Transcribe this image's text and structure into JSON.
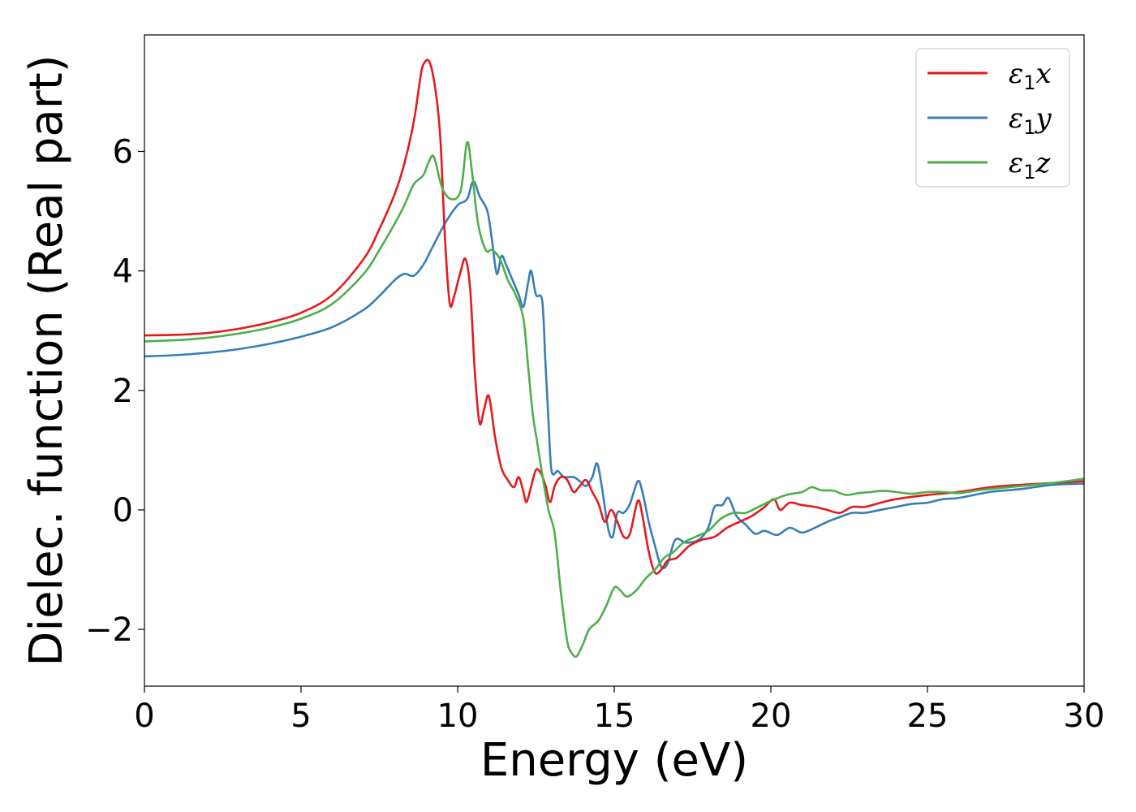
{
  "chart_data": {
    "type": "line",
    "title": "",
    "xlabel": "Energy (eV)",
    "ylabel": "Dielec. function (Real part)",
    "xlim": [
      0,
      30
    ],
    "ylim": [
      -2.95,
      7.95
    ],
    "xticks": [
      0,
      5,
      10,
      15,
      20,
      25,
      30
    ],
    "xtick_labels": [
      "0",
      "5",
      "10",
      "15",
      "20",
      "25",
      "30"
    ],
    "yticks": [
      -2,
      0,
      2,
      4,
      6
    ],
    "ytick_labels": [
      "−2",
      "0",
      "2",
      "4",
      "6"
    ],
    "grid": false,
    "legend_position": "top-right",
    "series": [
      {
        "name": "ε₁x",
        "legend_main": "ε",
        "legend_sub": "1",
        "legend_var": "x",
        "color": "#e41a1c",
        "points": [
          [
            0,
            2.92
          ],
          [
            1,
            2.93
          ],
          [
            2,
            2.96
          ],
          [
            3,
            3.03
          ],
          [
            4,
            3.14
          ],
          [
            5,
            3.3
          ],
          [
            6,
            3.6
          ],
          [
            7,
            4.2
          ],
          [
            7.5,
            4.7
          ],
          [
            8,
            5.3
          ],
          [
            8.3,
            5.8
          ],
          [
            8.6,
            6.5
          ],
          [
            8.8,
            7.2
          ],
          [
            8.9,
            7.45
          ],
          [
            9.1,
            7.5
          ],
          [
            9.3,
            7.0
          ],
          [
            9.45,
            6.2
          ],
          [
            9.6,
            4.5
          ],
          [
            9.75,
            3.45
          ],
          [
            9.9,
            3.6
          ],
          [
            10.1,
            4.0
          ],
          [
            10.25,
            4.2
          ],
          [
            10.4,
            3.7
          ],
          [
            10.55,
            2.3
          ],
          [
            10.7,
            1.45
          ],
          [
            10.85,
            1.7
          ],
          [
            11.0,
            1.9
          ],
          [
            11.2,
            1.2
          ],
          [
            11.4,
            0.7
          ],
          [
            11.6,
            0.5
          ],
          [
            11.8,
            0.38
          ],
          [
            11.95,
            0.55
          ],
          [
            12.1,
            0.3
          ],
          [
            12.2,
            0.13
          ],
          [
            12.35,
            0.4
          ],
          [
            12.5,
            0.67
          ],
          [
            12.65,
            0.62
          ],
          [
            12.8,
            0.42
          ],
          [
            12.95,
            0.13
          ],
          [
            13.1,
            0.4
          ],
          [
            13.3,
            0.55
          ],
          [
            13.5,
            0.5
          ],
          [
            13.7,
            0.3
          ],
          [
            13.9,
            0.4
          ],
          [
            14.1,
            0.5
          ],
          [
            14.3,
            0.3
          ],
          [
            14.5,
            0.1
          ],
          [
            14.7,
            -0.2
          ],
          [
            14.9,
            0.0
          ],
          [
            15.1,
            -0.2
          ],
          [
            15.3,
            -0.45
          ],
          [
            15.5,
            -0.4
          ],
          [
            15.75,
            0.15
          ],
          [
            15.9,
            -0.1
          ],
          [
            16.1,
            -0.7
          ],
          [
            16.3,
            -1.05
          ],
          [
            16.5,
            -1.0
          ],
          [
            16.7,
            -0.85
          ],
          [
            17.0,
            -0.8
          ],
          [
            17.4,
            -0.6
          ],
          [
            17.8,
            -0.5
          ],
          [
            18.2,
            -0.45
          ],
          [
            18.6,
            -0.3
          ],
          [
            19.0,
            -0.2
          ],
          [
            19.4,
            -0.1
          ],
          [
            19.8,
            0.05
          ],
          [
            20.1,
            0.18
          ],
          [
            20.3,
            0.0
          ],
          [
            20.6,
            0.12
          ],
          [
            21.0,
            0.08
          ],
          [
            21.4,
            0.05
          ],
          [
            21.8,
            0.0
          ],
          [
            22.2,
            -0.05
          ],
          [
            22.6,
            0.05
          ],
          [
            23.0,
            0.05
          ],
          [
            23.5,
            0.12
          ],
          [
            24.0,
            0.18
          ],
          [
            25.0,
            0.25
          ],
          [
            26.0,
            0.3
          ],
          [
            27.0,
            0.38
          ],
          [
            28.0,
            0.42
          ],
          [
            29.0,
            0.45
          ],
          [
            30.0,
            0.48
          ]
        ]
      },
      {
        "name": "ε₁y",
        "legend_main": "ε",
        "legend_sub": "1",
        "legend_var": "y",
        "color": "#377eb8",
        "points": [
          [
            0,
            2.57
          ],
          [
            1,
            2.59
          ],
          [
            2,
            2.63
          ],
          [
            3,
            2.69
          ],
          [
            4,
            2.78
          ],
          [
            5,
            2.9
          ],
          [
            6,
            3.06
          ],
          [
            7,
            3.35
          ],
          [
            7.5,
            3.58
          ],
          [
            8,
            3.85
          ],
          [
            8.3,
            3.95
          ],
          [
            8.6,
            3.92
          ],
          [
            8.9,
            4.1
          ],
          [
            9.2,
            4.4
          ],
          [
            9.6,
            4.8
          ],
          [
            10.0,
            5.1
          ],
          [
            10.3,
            5.2
          ],
          [
            10.5,
            5.5
          ],
          [
            10.7,
            5.25
          ],
          [
            10.95,
            5.0
          ],
          [
            11.1,
            4.5
          ],
          [
            11.25,
            3.95
          ],
          [
            11.4,
            4.25
          ],
          [
            11.55,
            4.1
          ],
          [
            11.75,
            3.85
          ],
          [
            11.95,
            3.6
          ],
          [
            12.1,
            3.4
          ],
          [
            12.25,
            3.8
          ],
          [
            12.35,
            4.0
          ],
          [
            12.5,
            3.6
          ],
          [
            12.7,
            3.5
          ],
          [
            12.8,
            2.5
          ],
          [
            12.9,
            1.5
          ],
          [
            13.0,
            0.65
          ],
          [
            13.2,
            0.65
          ],
          [
            13.4,
            0.55
          ],
          [
            13.7,
            0.55
          ],
          [
            13.9,
            0.48
          ],
          [
            14.1,
            0.4
          ],
          [
            14.3,
            0.55
          ],
          [
            14.45,
            0.78
          ],
          [
            14.6,
            0.4
          ],
          [
            14.8,
            -0.3
          ],
          [
            14.95,
            -0.45
          ],
          [
            15.1,
            -0.05
          ],
          [
            15.3,
            -0.05
          ],
          [
            15.5,
            0.1
          ],
          [
            15.75,
            0.48
          ],
          [
            15.9,
            0.3
          ],
          [
            16.1,
            -0.2
          ],
          [
            16.3,
            -0.6
          ],
          [
            16.5,
            -0.95
          ],
          [
            16.7,
            -0.9
          ],
          [
            16.95,
            -0.5
          ],
          [
            17.3,
            -0.55
          ],
          [
            17.7,
            -0.5
          ],
          [
            18.0,
            -0.3
          ],
          [
            18.2,
            0.05
          ],
          [
            18.45,
            0.08
          ],
          [
            18.65,
            0.2
          ],
          [
            18.9,
            -0.1
          ],
          [
            19.2,
            -0.25
          ],
          [
            19.5,
            -0.4
          ],
          [
            19.8,
            -0.35
          ],
          [
            20.2,
            -0.42
          ],
          [
            20.6,
            -0.3
          ],
          [
            21.0,
            -0.38
          ],
          [
            21.4,
            -0.3
          ],
          [
            21.8,
            -0.2
          ],
          [
            22.2,
            -0.12
          ],
          [
            22.6,
            -0.05
          ],
          [
            23.0,
            -0.05
          ],
          [
            23.5,
            0.0
          ],
          [
            24.0,
            0.05
          ],
          [
            24.5,
            0.1
          ],
          [
            25.0,
            0.12
          ],
          [
            25.5,
            0.18
          ],
          [
            26.0,
            0.2
          ],
          [
            27.0,
            0.3
          ],
          [
            28.0,
            0.35
          ],
          [
            29.0,
            0.42
          ],
          [
            30.0,
            0.44
          ]
        ]
      },
      {
        "name": "ε₁z",
        "legend_main": "ε",
        "legend_sub": "1",
        "legend_var": "z",
        "color": "#4daf4a",
        "points": [
          [
            0,
            2.82
          ],
          [
            1,
            2.84
          ],
          [
            2,
            2.88
          ],
          [
            3,
            2.95
          ],
          [
            4,
            3.05
          ],
          [
            5,
            3.2
          ],
          [
            6,
            3.45
          ],
          [
            7,
            3.95
          ],
          [
            7.5,
            4.35
          ],
          [
            8,
            4.8
          ],
          [
            8.3,
            5.1
          ],
          [
            8.6,
            5.45
          ],
          [
            8.9,
            5.6
          ],
          [
            9.1,
            5.85
          ],
          [
            9.25,
            5.9
          ],
          [
            9.5,
            5.4
          ],
          [
            9.8,
            5.2
          ],
          [
            10.1,
            5.35
          ],
          [
            10.3,
            6.15
          ],
          [
            10.45,
            5.7
          ],
          [
            10.65,
            4.8
          ],
          [
            10.9,
            4.35
          ],
          [
            11.1,
            4.35
          ],
          [
            11.35,
            4.2
          ],
          [
            11.6,
            3.85
          ],
          [
            11.85,
            3.6
          ],
          [
            12.1,
            3.2
          ],
          [
            12.25,
            2.4
          ],
          [
            12.4,
            1.6
          ],
          [
            12.55,
            1.1
          ],
          [
            12.7,
            0.6
          ],
          [
            12.9,
            0.0
          ],
          [
            13.1,
            -0.4
          ],
          [
            13.3,
            -1.4
          ],
          [
            13.5,
            -2.2
          ],
          [
            13.65,
            -2.4
          ],
          [
            13.8,
            -2.45
          ],
          [
            14.0,
            -2.25
          ],
          [
            14.2,
            -2.0
          ],
          [
            14.5,
            -1.85
          ],
          [
            14.75,
            -1.6
          ],
          [
            15.0,
            -1.3
          ],
          [
            15.2,
            -1.35
          ],
          [
            15.4,
            -1.45
          ],
          [
            15.7,
            -1.35
          ],
          [
            16.0,
            -1.15
          ],
          [
            16.3,
            -1.0
          ],
          [
            16.6,
            -0.8
          ],
          [
            16.9,
            -0.7
          ],
          [
            17.2,
            -0.55
          ],
          [
            17.6,
            -0.45
          ],
          [
            18.0,
            -0.35
          ],
          [
            18.4,
            -0.15
          ],
          [
            18.8,
            -0.05
          ],
          [
            19.2,
            -0.05
          ],
          [
            19.6,
            0.05
          ],
          [
            20.0,
            0.15
          ],
          [
            20.5,
            0.25
          ],
          [
            21.0,
            0.3
          ],
          [
            21.3,
            0.38
          ],
          [
            21.6,
            0.33
          ],
          [
            22.0,
            0.32
          ],
          [
            22.4,
            0.25
          ],
          [
            22.8,
            0.28
          ],
          [
            23.2,
            0.3
          ],
          [
            23.6,
            0.32
          ],
          [
            24.0,
            0.3
          ],
          [
            24.5,
            0.27
          ],
          [
            25.0,
            0.3
          ],
          [
            25.5,
            0.3
          ],
          [
            26.0,
            0.28
          ],
          [
            26.5,
            0.32
          ],
          [
            27.0,
            0.35
          ],
          [
            28.0,
            0.4
          ],
          [
            29.0,
            0.45
          ],
          [
            30.0,
            0.52
          ]
        ]
      }
    ]
  }
}
